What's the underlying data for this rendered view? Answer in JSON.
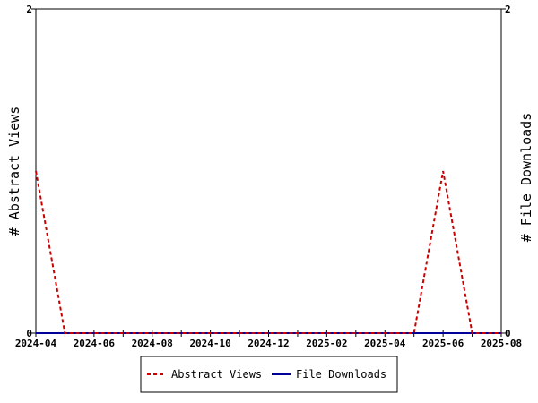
{
  "chart_data": {
    "type": "line",
    "title": "",
    "ylabel_left": "# Abstract Views",
    "ylabel_right": "# File Downloads",
    "x_tick_labels": [
      "2024-04",
      "2024-06",
      "2024-08",
      "2024-10",
      "2024-12",
      "2025-02",
      "2025-04",
      "2025-06",
      "2025-08"
    ],
    "xlim": [
      "2024-04",
      "2025-08"
    ],
    "ylim_left": [
      0,
      2
    ],
    "ylim_right": [
      0,
      2
    ],
    "y_ticks_left": [
      "0",
      "2"
    ],
    "y_ticks_right": [
      "0",
      "2"
    ],
    "grid": false,
    "legend_position": "bottom-center",
    "series": [
      {
        "name": "Abstract Views",
        "color": "#cc0000",
        "style": "dashed",
        "axis": "left",
        "x": [
          "2024-04",
          "2024-05",
          "2024-06",
          "2024-07",
          "2024-08",
          "2024-09",
          "2024-10",
          "2024-11",
          "2024-12",
          "2025-01",
          "2025-02",
          "2025-03",
          "2025-04",
          "2025-05",
          "2025-06",
          "2025-07",
          "2025-08"
        ],
        "values": [
          1,
          0,
          0,
          0,
          0,
          0,
          0,
          0,
          0,
          0,
          0,
          0,
          0,
          0,
          1,
          0,
          0
        ]
      },
      {
        "name": "File Downloads",
        "color": "#000099",
        "style": "solid",
        "axis": "right",
        "x": [
          "2024-04",
          "2024-05",
          "2024-06",
          "2024-07",
          "2024-08",
          "2024-09",
          "2024-10",
          "2024-11",
          "2024-12",
          "2025-01",
          "2025-02",
          "2025-03",
          "2025-04",
          "2025-05",
          "2025-06",
          "2025-07",
          "2025-08"
        ],
        "values": [
          0,
          0,
          0,
          0,
          0,
          0,
          0,
          0,
          0,
          0,
          0,
          0,
          0,
          0,
          0,
          0,
          0
        ]
      }
    ]
  }
}
